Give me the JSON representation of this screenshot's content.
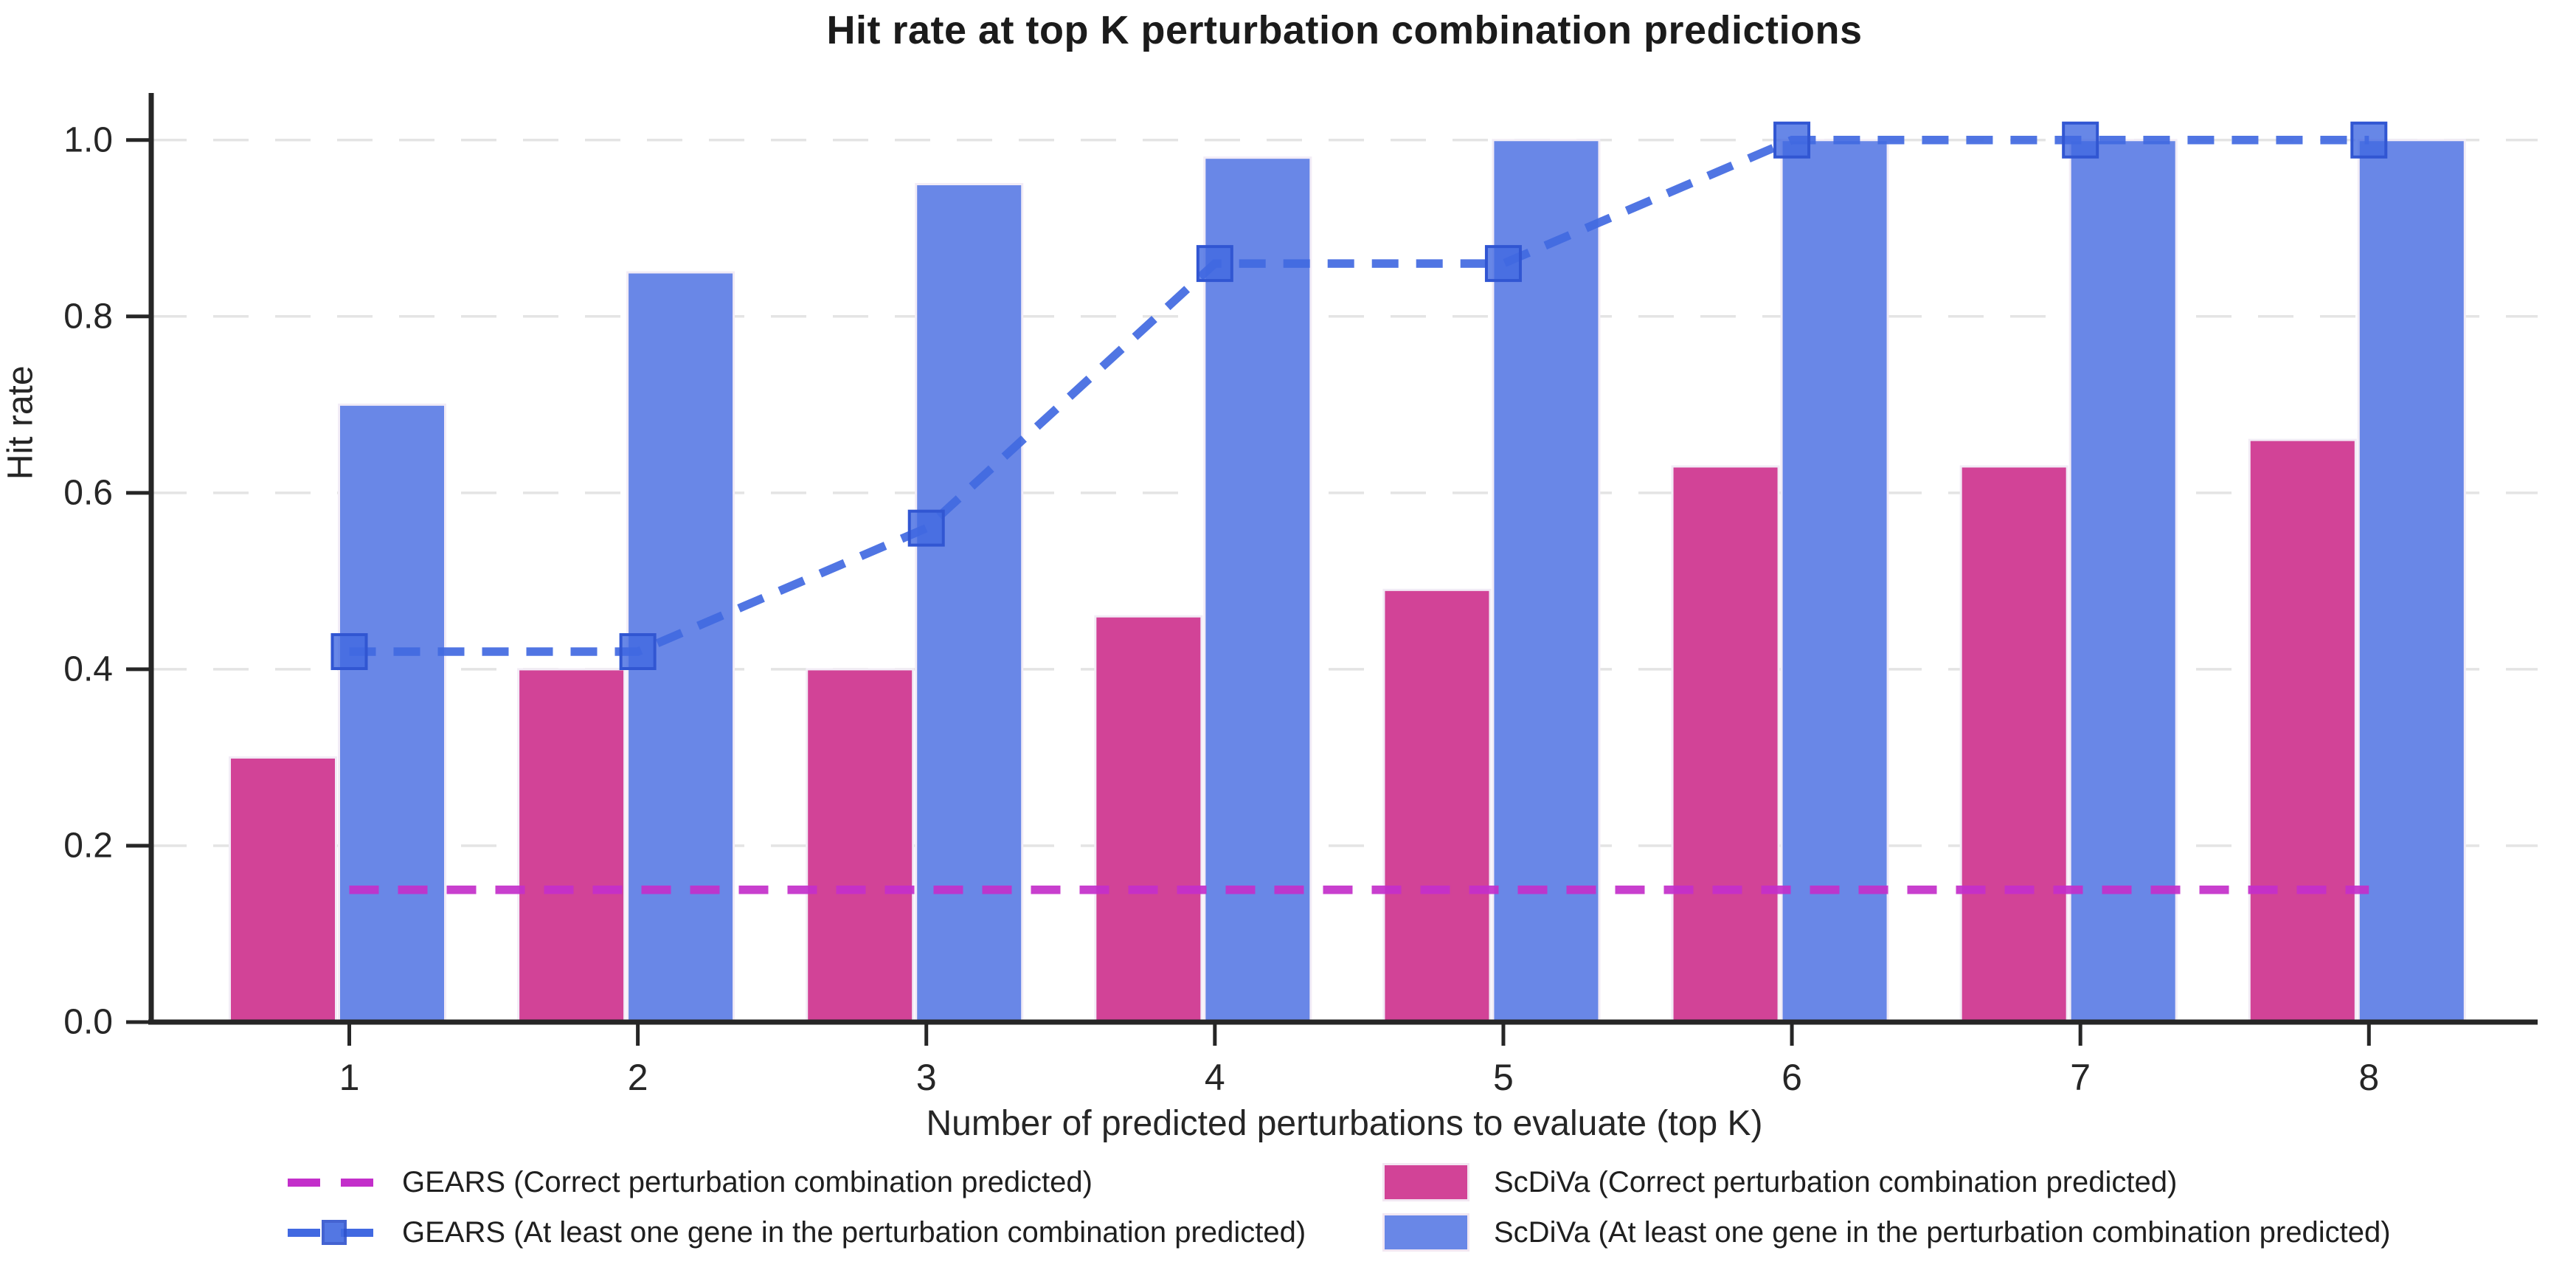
{
  "figure": {
    "title": "Hit rate at top K perturbation combination predictions"
  },
  "axes": {
    "y_label": "Hit rate",
    "x_label": "Number of predicted perturbations to evaluate (top K)",
    "y_ticks": [
      "0.0",
      "0.2",
      "0.4",
      "0.6",
      "0.8",
      "1.0"
    ],
    "x_ticks": [
      "1",
      "2",
      "3",
      "4",
      "5",
      "6",
      "7",
      "8"
    ]
  },
  "chart_data": {
    "type": "bar+line",
    "title": "Hit rate at top K perturbation combination predictions",
    "xlabel": "Number of predicted perturbations to evaluate (top K)",
    "ylabel": "Hit rate",
    "categories": [
      1,
      2,
      3,
      4,
      5,
      6,
      7,
      8
    ],
    "ylim": [
      0,
      1.05
    ],
    "grid": "horizontal dashed gridlines every 0.2",
    "legend_position": "below plot, two columns",
    "series": [
      {
        "id": "gears_correct",
        "name": "GEARS (Correct perturbation combination predicted)",
        "type": "line",
        "line_style": "dashed",
        "marker": "none",
        "color": "#c32fca",
        "values": [
          0.15,
          0.15,
          0.15,
          0.15,
          0.15,
          0.15,
          0.15,
          0.15
        ]
      },
      {
        "id": "gears_atleast",
        "name": "GEARS (At least one gene in the perturbation combination predicted)",
        "type": "line",
        "line_style": "dashed",
        "marker": "square",
        "color": "#4169e1",
        "values": [
          0.42,
          0.42,
          0.56,
          0.86,
          0.86,
          1.0,
          1.0,
          1.0
        ]
      },
      {
        "id": "scdiva_correct",
        "name": "ScDiVa (Correct perturbation combination predicted)",
        "type": "bar",
        "color": "#d24397",
        "values": [
          0.3,
          0.4,
          0.4,
          0.46,
          0.49,
          0.63,
          0.63,
          0.66
        ]
      },
      {
        "id": "scdiva_atleast",
        "name": "ScDiVa (At least one gene in the perturbation combination predicted)",
        "type": "bar",
        "color": "#6987e7",
        "values": [
          0.7,
          0.85,
          0.95,
          0.98,
          1.0,
          1.0,
          1.0,
          1.0
        ]
      }
    ]
  },
  "legend": {
    "items": [
      {
        "label": "GEARS (Correct perturbation combination predicted)",
        "swatch": "dashed-line",
        "color": "#c32fca"
      },
      {
        "label": "GEARS (At least one gene in the perturbation combination predicted)",
        "swatch": "dashed-line-marker",
        "color": "#4169e1"
      },
      {
        "label": "ScDiVa (Correct perturbation combination predicted)",
        "swatch": "bar",
        "color": "#d24397"
      },
      {
        "label": "ScDiVa (At least one gene in the perturbation combination predicted)",
        "swatch": "bar",
        "color": "#6987e7"
      }
    ]
  }
}
